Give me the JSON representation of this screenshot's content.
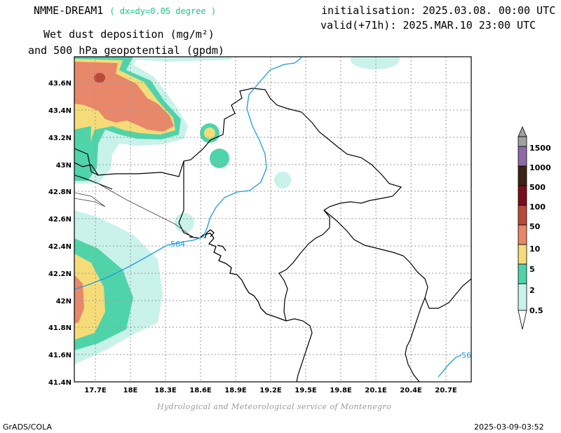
{
  "header": {
    "model": "NMME-DREAM1",
    "resolution": "( dx=dy=0.05 degree )",
    "title_line1": "Wet dust deposition (mg/m²)",
    "title_line2": "and 500 hPa geopotential (gpdm)",
    "init": "initialisation: 2025.03.08. 00:00 UTC",
    "valid": "valid(+71h): 2025.MAR.10 23:00 UTC"
  },
  "footer": {
    "credit": "Hydrological and Meteorological service of Montenegro",
    "software": "GrADS/COLA",
    "timestamp": "2025-03-09-03:52"
  },
  "map": {
    "lat_labels": [
      "43.6N",
      "43.4N",
      "43.2N",
      "43N",
      "42.8N",
      "42.6N",
      "42.4N",
      "42.2N",
      "42N",
      "41.8N",
      "41.6N",
      "41.4N"
    ],
    "lon_labels": [
      "17.7E",
      "18E",
      "18.3E",
      "18.6E",
      "18.9E",
      "19.2E",
      "19.5E",
      "19.8E",
      "20.1E",
      "20.4E",
      "20.7E"
    ],
    "contour_labels": [
      "564",
      "56"
    ]
  },
  "legend": {
    "levels": [
      "1500",
      "1000",
      "500",
      "100",
      "50",
      "10",
      "5",
      "2",
      "0.5"
    ],
    "colors": [
      "#a0a0a0",
      "#8e6aa8",
      "#3a2416",
      "#7a0d1e",
      "#b84a3c",
      "#e8876a",
      "#f5dc78",
      "#4fd4aa",
      "#c8f2ea"
    ]
  },
  "colors": {
    "contour": "#1e9be0",
    "resolution_text": "#1cc58a"
  }
}
